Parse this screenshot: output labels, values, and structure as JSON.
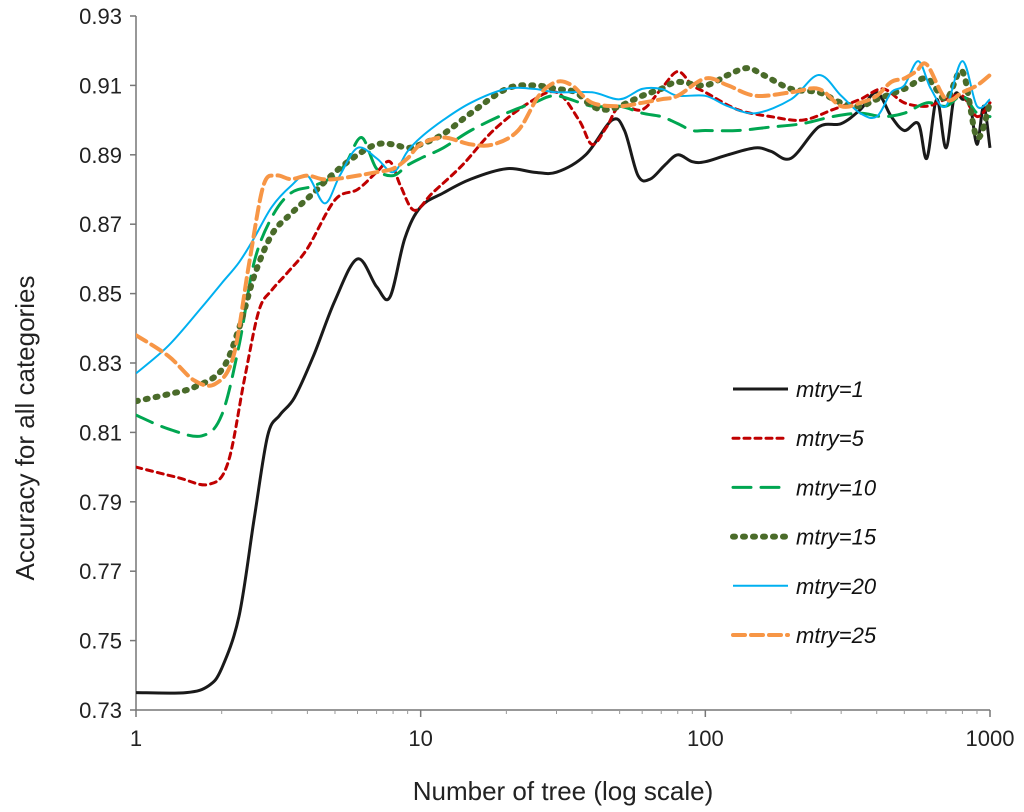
{
  "chart_data": {
    "type": "line",
    "title": "",
    "xlabel": "Number of tree (log scale)",
    "ylabel": "Accuracy for all categories",
    "xscale": "log",
    "xlim": [
      1,
      1000
    ],
    "ylim": [
      0.73,
      0.93
    ],
    "xticks": [
      1,
      10,
      100,
      1000
    ],
    "xtick_labels": [
      "1",
      "10",
      "100",
      "1000"
    ],
    "yticks": [
      0.73,
      0.75,
      0.77,
      0.79,
      0.81,
      0.83,
      0.85,
      0.87,
      0.89,
      0.91,
      0.93
    ],
    "ytick_labels": [
      "0.73",
      "0.75",
      "0.77",
      "0.79",
      "0.81",
      "0.83",
      "0.85",
      "0.87",
      "0.89",
      "0.91",
      "0.93"
    ],
    "grid": false,
    "legend_position": "right-middle",
    "series": [
      {
        "name": "mtry=1",
        "color": "#1a1a1a",
        "dash": "solid",
        "width": 3,
        "x": [
          1,
          1.5,
          1.8,
          2.0,
          2.3,
          2.6,
          2.9,
          3.2,
          3.6,
          4.2,
          5.0,
          6.0,
          7.0,
          7.8,
          8.8,
          10,
          12,
          15,
          20,
          25,
          30,
          38,
          47,
          52,
          58,
          64,
          72,
          80,
          90,
          100,
          120,
          150,
          170,
          200,
          250,
          300,
          350,
          400,
          450,
          500,
          560,
          600,
          650,
          700,
          750,
          800,
          850,
          900,
          950,
          1000
        ],
        "y": [
          0.735,
          0.735,
          0.737,
          0.742,
          0.757,
          0.785,
          0.809,
          0.815,
          0.82,
          0.832,
          0.848,
          0.86,
          0.852,
          0.849,
          0.866,
          0.875,
          0.879,
          0.883,
          0.886,
          0.885,
          0.885,
          0.89,
          0.9,
          0.897,
          0.884,
          0.883,
          0.887,
          0.89,
          0.888,
          0.888,
          0.89,
          0.892,
          0.891,
          0.889,
          0.898,
          0.899,
          0.903,
          0.908,
          0.901,
          0.897,
          0.899,
          0.889,
          0.906,
          0.892,
          0.907,
          0.906,
          0.905,
          0.893,
          0.904,
          0.892
        ]
      },
      {
        "name": "mtry=5",
        "color": "#c00000",
        "dash": "6,5",
        "width": 3,
        "x": [
          1,
          1.4,
          1.8,
          2.1,
          2.4,
          2.7,
          3.0,
          3.4,
          4.0,
          5.0,
          6.0,
          7.0,
          7.8,
          8.5,
          9.5,
          11,
          14,
          18,
          24,
          30,
          36,
          40,
          45,
          50,
          60,
          70,
          80,
          90,
          100,
          130,
          170,
          220,
          280,
          350,
          420,
          500,
          600,
          700,
          800,
          900,
          1000
        ],
        "y": [
          0.8,
          0.797,
          0.795,
          0.801,
          0.825,
          0.845,
          0.851,
          0.856,
          0.863,
          0.877,
          0.88,
          0.885,
          0.888,
          0.881,
          0.874,
          0.879,
          0.887,
          0.897,
          0.905,
          0.908,
          0.9,
          0.893,
          0.898,
          0.904,
          0.903,
          0.909,
          0.914,
          0.91,
          0.908,
          0.903,
          0.901,
          0.9,
          0.903,
          0.906,
          0.909,
          0.905,
          0.904,
          0.906,
          0.907,
          0.901,
          0.905
        ]
      },
      {
        "name": "mtry=10",
        "color": "#00a651",
        "dash": "18,10",
        "width": 3,
        "x": [
          1,
          1.3,
          1.7,
          2.0,
          2.3,
          2.6,
          3.0,
          3.5,
          4.2,
          5.0,
          5.5,
          6.2,
          7.0,
          8.0,
          9.0,
          10,
          12,
          15,
          20,
          25,
          30,
          40,
          50,
          60,
          70,
          80,
          90,
          100,
          130,
          170,
          220,
          280,
          350,
          420,
          500,
          600,
          700,
          800,
          900,
          1000
        ],
        "y": [
          0.815,
          0.811,
          0.809,
          0.815,
          0.835,
          0.859,
          0.872,
          0.879,
          0.881,
          0.884,
          0.888,
          0.895,
          0.886,
          0.884,
          0.887,
          0.889,
          0.892,
          0.897,
          0.902,
          0.905,
          0.907,
          0.904,
          0.904,
          0.902,
          0.901,
          0.899,
          0.897,
          0.897,
          0.897,
          0.898,
          0.899,
          0.901,
          0.902,
          0.901,
          0.902,
          0.905,
          0.904,
          0.907,
          0.902,
          0.901
        ]
      },
      {
        "name": "mtry=15",
        "color": "#4a6b2a",
        "dash": "2,8",
        "width": 6,
        "x": [
          1,
          1.3,
          1.6,
          2.0,
          2.3,
          2.6,
          3.0,
          3.5,
          4.2,
          5.0,
          6.0,
          7.0,
          8.0,
          9.0,
          10,
          12,
          15,
          20,
          25,
          30,
          35,
          40,
          45,
          50,
          60,
          70,
          80,
          100,
          120,
          140,
          160,
          200,
          250,
          300,
          350,
          400,
          500,
          600,
          700,
          800,
          900,
          1000
        ],
        "y": [
          0.819,
          0.821,
          0.823,
          0.828,
          0.84,
          0.855,
          0.867,
          0.873,
          0.879,
          0.885,
          0.89,
          0.893,
          0.893,
          0.892,
          0.893,
          0.896,
          0.902,
          0.909,
          0.91,
          0.909,
          0.908,
          0.904,
          0.903,
          0.904,
          0.907,
          0.909,
          0.911,
          0.91,
          0.913,
          0.915,
          0.913,
          0.909,
          0.908,
          0.905,
          0.904,
          0.906,
          0.909,
          0.912,
          0.906,
          0.914,
          0.895,
          0.905
        ]
      },
      {
        "name": "mtry=20",
        "color": "#00b0f0",
        "dash": "solid",
        "width": 2,
        "x": [
          1,
          1.3,
          1.7,
          2.0,
          2.3,
          2.6,
          3.0,
          3.5,
          4.0,
          4.6,
          5.2,
          6.0,
          7.0,
          8.0,
          9.0,
          10,
          12,
          15,
          20,
          25,
          30,
          40,
          50,
          60,
          70,
          80,
          100,
          120,
          150,
          200,
          250,
          300,
          350,
          400,
          450,
          500,
          560,
          620,
          700,
          800,
          900,
          1000
        ],
        "y": [
          0.827,
          0.835,
          0.846,
          0.853,
          0.859,
          0.866,
          0.875,
          0.881,
          0.884,
          0.876,
          0.884,
          0.892,
          0.889,
          0.885,
          0.891,
          0.895,
          0.9,
          0.905,
          0.909,
          0.909,
          0.908,
          0.908,
          0.906,
          0.909,
          0.909,
          0.907,
          0.907,
          0.904,
          0.902,
          0.906,
          0.913,
          0.907,
          0.902,
          0.901,
          0.908,
          0.91,
          0.917,
          0.909,
          0.904,
          0.917,
          0.904,
          0.906
        ]
      },
      {
        "name": "mtry=25",
        "color": "#f79646",
        "dash": "12,6",
        "width": 4,
        "x": [
          1,
          1.3,
          1.6,
          1.9,
          2.2,
          2.5,
          2.8,
          3.1,
          3.5,
          4.0,
          4.5,
          5.0,
          6.0,
          7.0,
          8.0,
          9.0,
          10,
          12,
          15,
          18,
          22,
          26,
          30,
          34,
          40,
          50,
          60,
          70,
          80,
          100,
          120,
          150,
          200,
          250,
          300,
          350,
          400,
          450,
          500,
          550,
          600,
          700,
          800,
          900,
          1000
        ],
        "y": [
          0.838,
          0.832,
          0.825,
          0.824,
          0.832,
          0.859,
          0.881,
          0.884,
          0.883,
          0.884,
          0.883,
          0.883,
          0.884,
          0.885,
          0.886,
          0.889,
          0.893,
          0.895,
          0.893,
          0.893,
          0.897,
          0.907,
          0.911,
          0.91,
          0.905,
          0.904,
          0.905,
          0.906,
          0.907,
          0.912,
          0.91,
          0.907,
          0.908,
          0.909,
          0.904,
          0.905,
          0.907,
          0.911,
          0.912,
          0.914,
          0.916,
          0.906,
          0.908,
          0.91,
          0.913
        ]
      }
    ]
  }
}
